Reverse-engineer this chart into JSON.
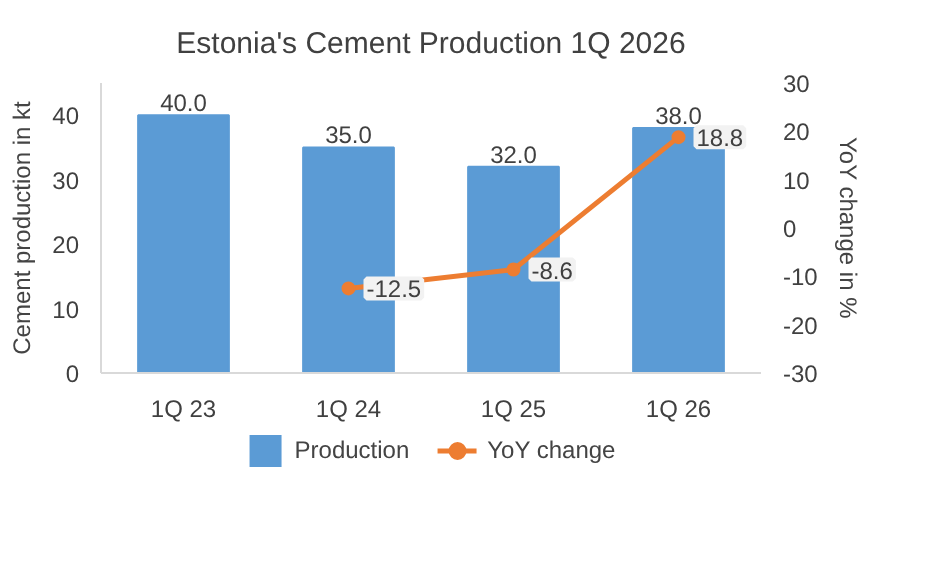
{
  "chart_data": {
    "type": "bar",
    "title": "Estonia's Cement Production 1Q 2026",
    "categories": [
      "1Q 23",
      "1Q 24",
      "1Q 25",
      "1Q 26"
    ],
    "ylabel": "Cement production in kt",
    "y2label": "YoY change in %",
    "ylim": [
      0,
      45
    ],
    "yticks": [
      0,
      10,
      20,
      30,
      40
    ],
    "y2lim": [
      -30,
      30
    ],
    "y2ticks": [
      -30,
      -20,
      -10,
      0,
      10,
      20,
      30
    ],
    "series": [
      {
        "name": "Production",
        "color": "#5b9bd5",
        "values": [
          40.0,
          35.0,
          32.0,
          38.0
        ],
        "value_labels": [
          "40.0",
          "35.0",
          "32.0",
          "38.0"
        ]
      },
      {
        "name": "YoY change",
        "type": "line",
        "axis": "y2",
        "color": "#ed7d31",
        "values": [
          null,
          -12.5,
          -8.6,
          18.8
        ],
        "value_labels": [
          null,
          "-12.5",
          "-8.6",
          "18.8"
        ]
      }
    ],
    "marker": "circle",
    "legend": "bottom",
    "grid": false
  }
}
